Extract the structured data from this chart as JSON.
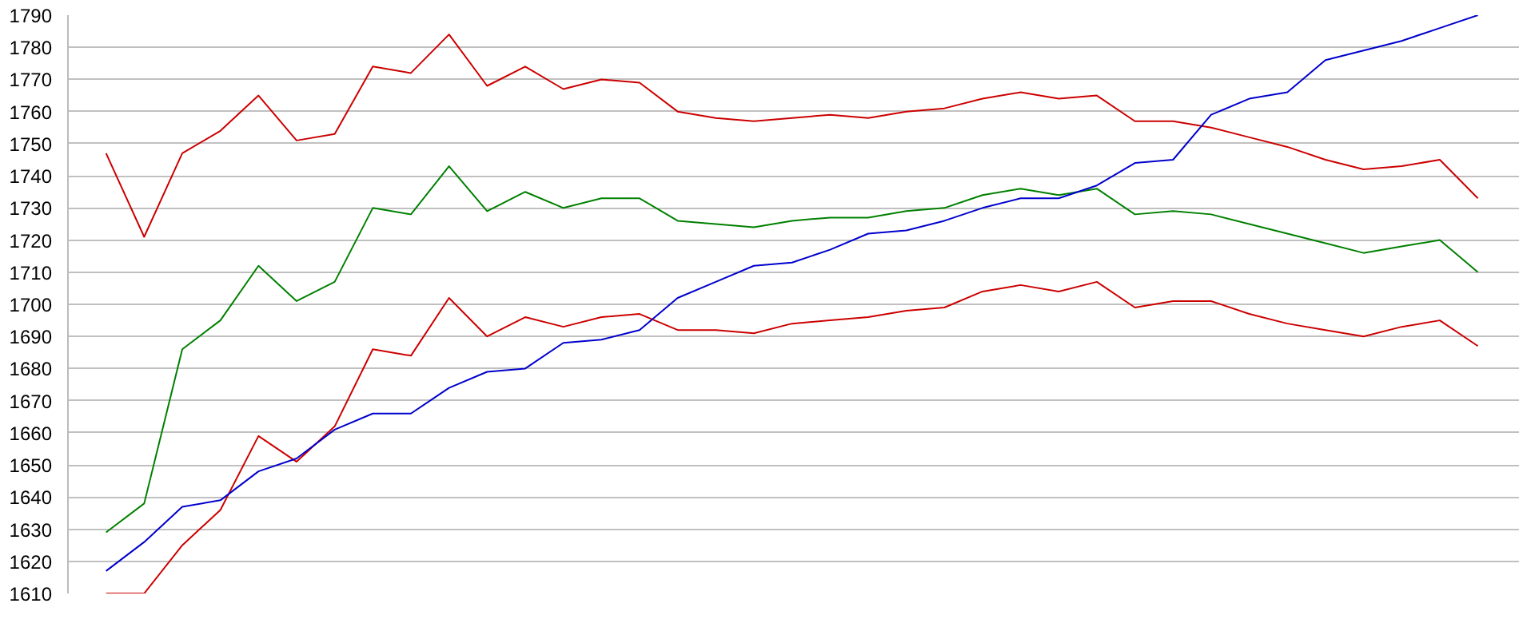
{
  "chart_data": {
    "type": "line",
    "categories": [
      null,
      null,
      null,
      null,
      null,
      null,
      null,
      null,
      null,
      null,
      null,
      null,
      null,
      null,
      null,
      null,
      null,
      null,
      null,
      null,
      null,
      null,
      null,
      null,
      null,
      null,
      null,
      null,
      null,
      null,
      null,
      null,
      null,
      null,
      null,
      null,
      null
    ],
    "series": [
      {
        "color": "#cc0000",
        "values": [
          1747,
          1721,
          1747,
          1754,
          1765,
          1751,
          1753,
          1774,
          1772,
          1784,
          1768,
          1774,
          1767,
          1770,
          1769,
          1760,
          1758,
          1757,
          1758,
          1759,
          1758,
          1760,
          1761,
          1764,
          1766,
          1764,
          1765,
          1757,
          1757,
          1755,
          1752,
          1749,
          1745,
          1742,
          1743,
          1745,
          1733
        ]
      },
      {
        "color": "#008000",
        "values": [
          1629,
          1638,
          1686,
          1695,
          1712,
          1701,
          1707,
          1730,
          1728,
          1743,
          1729,
          1735,
          1730,
          1733,
          1733,
          1726,
          1725,
          1724,
          1726,
          1727,
          1727,
          1729,
          1730,
          1734,
          1736,
          1734,
          1736,
          1728,
          1729,
          1728,
          1725,
          1722,
          1719,
          1716,
          1718,
          1720,
          1710
        ]
      },
      {
        "color": "#cc0000",
        "values": [
          1610,
          1610,
          1625,
          1636,
          1659,
          1651,
          1662,
          1686,
          1684,
          1702,
          1690,
          1696,
          1693,
          1696,
          1697,
          1692,
          1692,
          1691,
          1694,
          1695,
          1696,
          1698,
          1699,
          1704,
          1706,
          1704,
          1707,
          1699,
          1701,
          1701,
          1697,
          1694,
          1692,
          1690,
          1693,
          1695,
          1687
        ]
      },
      {
        "color": "#0000cc",
        "values": [
          1617,
          1626,
          1637,
          1639,
          1648,
          1652,
          1661,
          1666,
          1666,
          1674,
          1679,
          1680,
          1688,
          1689,
          1692,
          1702,
          1707,
          1712,
          1713,
          1717,
          1722,
          1723,
          1726,
          1730,
          1733,
          1733,
          1737,
          1744,
          1745,
          1759,
          1764,
          1766,
          1776,
          1779,
          1782,
          1786,
          1790
        ]
      }
    ],
    "ylim": [
      1610,
      1790
    ],
    "yticks": [
      1610,
      1620,
      1630,
      1640,
      1650,
      1660,
      1670,
      1680,
      1690,
      1700,
      1710,
      1720,
      1730,
      1740,
      1750,
      1760,
      1770,
      1780,
      1790
    ],
    "grid": "y",
    "tick_labels": "y",
    "marker": "none",
    "line_style": "solid"
  }
}
